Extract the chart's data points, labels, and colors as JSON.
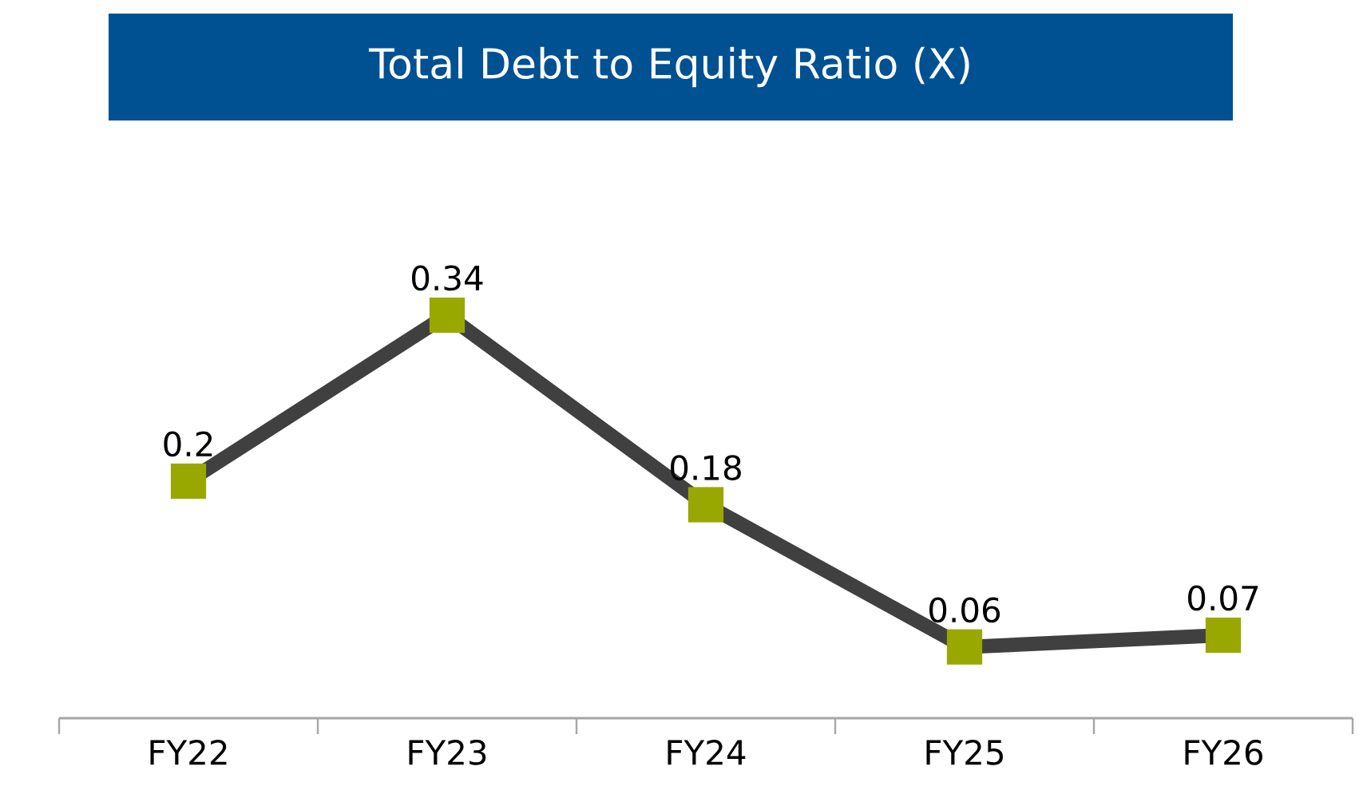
{
  "chart_data": {
    "type": "line",
    "title": "Total Debt to Equity Ratio (X)",
    "categories": [
      "FY22",
      "FY23",
      "FY24",
      "FY25",
      "FY26"
    ],
    "values": [
      0.2,
      0.34,
      0.18,
      0.06,
      0.07
    ],
    "color": "#404040",
    "marker": "square",
    "line_style": "solid",
    "data_labels": true
  }
}
